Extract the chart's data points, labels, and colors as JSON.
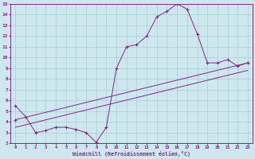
{
  "xlabel": "Windchill (Refroidissement éolien,°C)",
  "bg_color": "#cce8ee",
  "grid_color": "#aaccd4",
  "line_color": "#882288",
  "xlim": [
    -0.5,
    23.5
  ],
  "ylim": [
    2,
    15
  ],
  "xticks": [
    0,
    1,
    2,
    3,
    4,
    5,
    6,
    7,
    8,
    9,
    10,
    11,
    12,
    13,
    14,
    15,
    16,
    17,
    18,
    19,
    20,
    21,
    22,
    23
  ],
  "yticks": [
    2,
    3,
    4,
    5,
    6,
    7,
    8,
    9,
    10,
    11,
    12,
    13,
    14,
    15
  ],
  "line1_x": [
    0,
    1,
    2,
    3,
    4,
    5,
    6,
    7,
    8,
    9,
    10,
    11,
    12,
    13,
    14,
    15,
    16,
    17,
    18,
    19,
    20,
    21,
    22,
    23
  ],
  "line1_y": [
    5.5,
    4.5,
    3.0,
    3.2,
    3.5,
    3.5,
    3.3,
    3.0,
    2.1,
    3.5,
    9.0,
    11.0,
    11.2,
    12.0,
    13.8,
    14.3,
    15.0,
    14.5,
    12.2,
    9.5,
    9.5,
    9.8,
    9.2,
    9.5
  ],
  "line2_x": [
    0,
    23
  ],
  "line2_y": [
    4.2,
    9.5
  ],
  "line3_x": [
    0,
    23
  ],
  "line3_y": [
    3.5,
    8.8
  ]
}
